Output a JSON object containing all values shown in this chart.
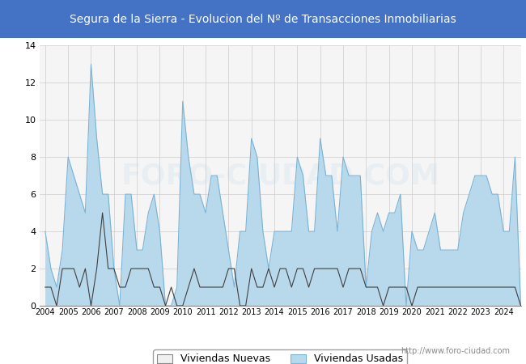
{
  "title": "Segura de la Sierra - Evolucion del Nº de Transacciones Inmobiliarias",
  "title_color": "#ffffff",
  "title_bg_color": "#4472c4",
  "ylim": [
    0,
    14
  ],
  "yticks": [
    0,
    2,
    4,
    6,
    8,
    10,
    12,
    14
  ],
  "watermark": "http://www.foro-ciudad.com",
  "legend_labels": [
    "Viviendas Nuevas",
    "Viviendas Usadas"
  ],
  "nuevas_color": "#404040",
  "usadas_color": "#7ab3d4",
  "usadas_fill_color": "#b8d8ec",
  "x_labels": [
    "2004",
    "2005",
    "2006",
    "2007",
    "2008",
    "2009",
    "2010",
    "2011",
    "2012",
    "2013",
    "2014",
    "2015",
    "2016",
    "2017",
    "2018",
    "2019",
    "2020",
    "2021",
    "2022",
    "2023",
    "2024"
  ],
  "viviendas_usadas": [
    4,
    2,
    1,
    3,
    8,
    7,
    6,
    5,
    13,
    9,
    6,
    6,
    2,
    0,
    6,
    6,
    3,
    3,
    5,
    6,
    4,
    0,
    0,
    1,
    11,
    8,
    6,
    6,
    5,
    7,
    7,
    5,
    3,
    1,
    4,
    4,
    9,
    8,
    4,
    2,
    4,
    4,
    4,
    4,
    8,
    7,
    4,
    4,
    9,
    7,
    7,
    4,
    8,
    7,
    7,
    7,
    1,
    4,
    5,
    4,
    5,
    5,
    6,
    0,
    4,
    3,
    3,
    4,
    5,
    3,
    3,
    3,
    3,
    5,
    6,
    7,
    7,
    7,
    6,
    6,
    4,
    4,
    8,
    0
  ],
  "viviendas_nuevas": [
    1,
    1,
    0,
    2,
    2,
    2,
    1,
    2,
    0,
    2,
    5,
    2,
    2,
    1,
    1,
    2,
    2,
    2,
    2,
    1,
    1,
    0,
    1,
    0,
    0,
    1,
    2,
    1,
    1,
    1,
    1,
    1,
    2,
    2,
    0,
    0,
    2,
    1,
    1,
    2,
    1,
    2,
    2,
    1,
    2,
    2,
    1,
    2,
    2,
    2,
    2,
    2,
    1,
    2,
    2,
    2,
    1,
    1,
    1,
    0,
    1,
    1,
    1,
    1,
    0,
    1,
    1,
    1,
    1,
    1,
    1,
    1,
    1,
    1,
    1,
    1,
    1,
    1,
    1,
    1,
    1,
    1,
    1,
    0
  ]
}
